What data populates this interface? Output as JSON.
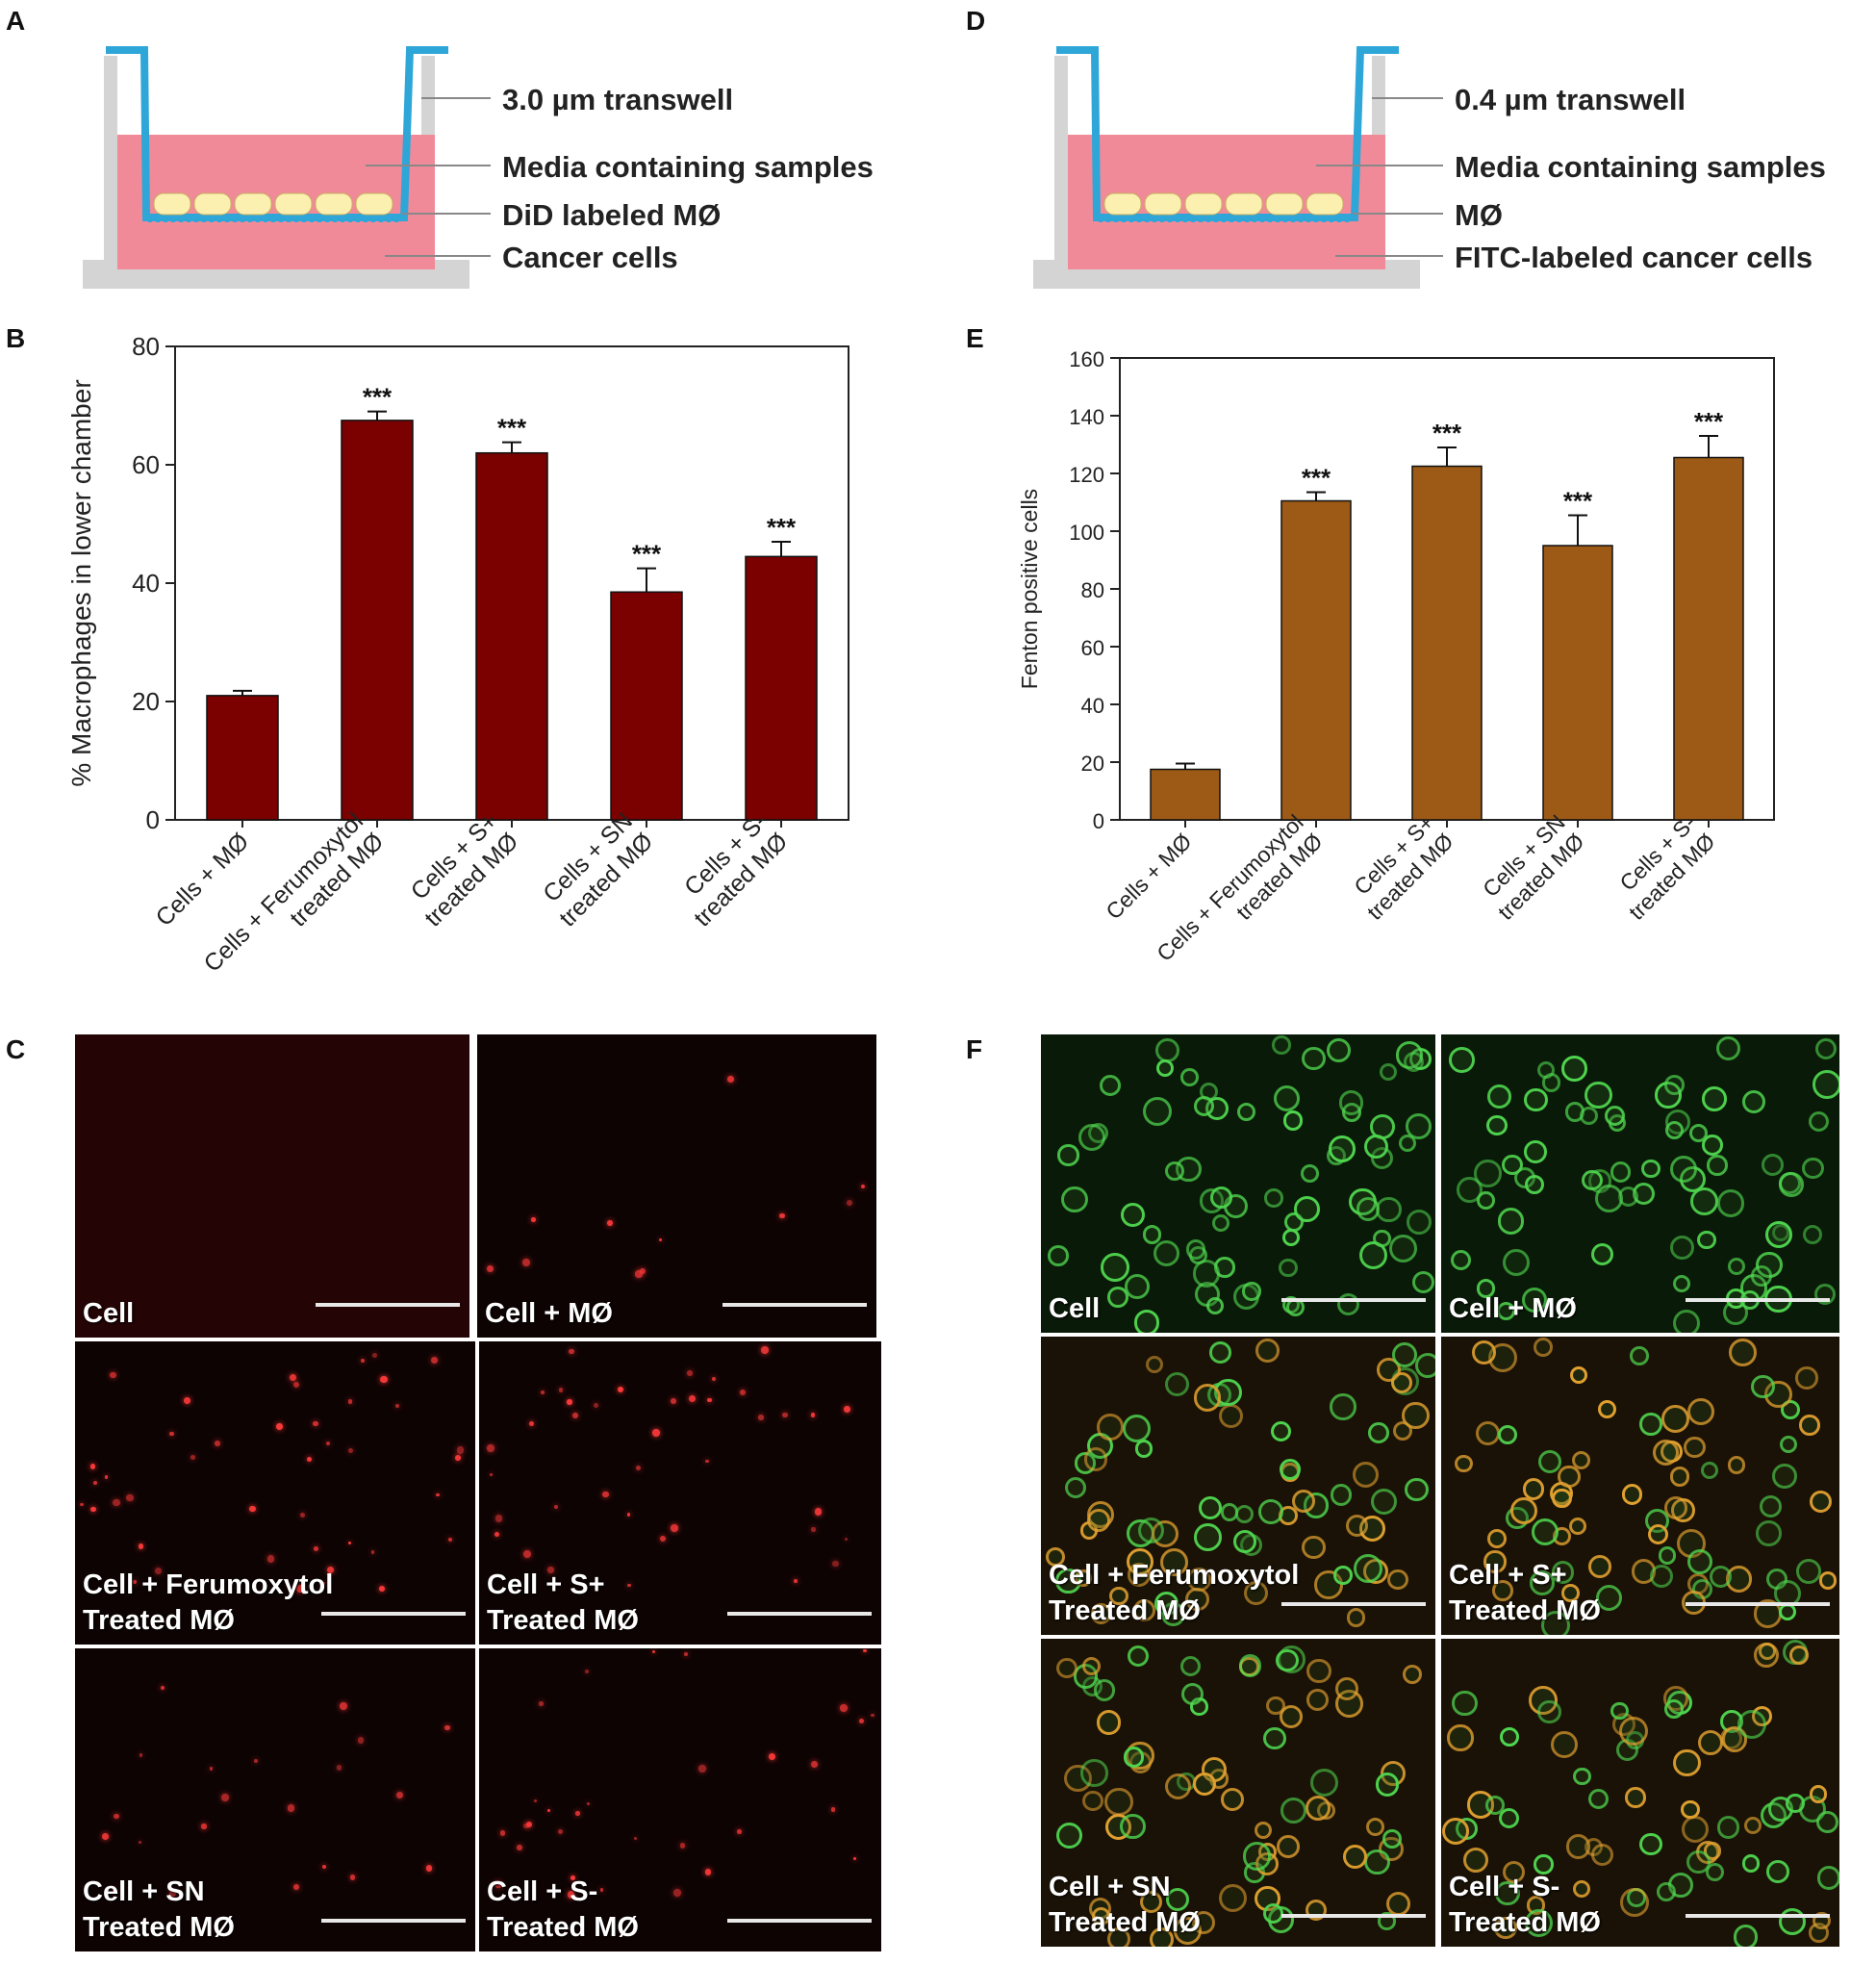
{
  "panels": {
    "A": "A",
    "B": "B",
    "C": "C",
    "D": "D",
    "E": "E",
    "F": "F"
  },
  "schematic_a": {
    "labels": [
      "3.0 µm transwell",
      "Media containing samples",
      "DiD labeled MØ",
      "Cancer cells"
    ]
  },
  "schematic_d": {
    "labels": [
      "0.4 µm transwell",
      "Media containing samples",
      "MØ",
      "FITC-labeled cancer cells"
    ]
  },
  "colors": {
    "media": "#f08a98",
    "transwell": "#2ea6d8",
    "membrane_dots": "#2ea6d8",
    "cells": "#fbf0b0",
    "dish": "#d4d4d4",
    "bar_b": "#7b0000",
    "bar_e": "#9c5a16",
    "red_fluor": "#ff3a3a",
    "green_fluor": "#4fd64f",
    "orange_fluor": "#e0a030"
  },
  "chart_data": [
    {
      "panel": "B",
      "type": "bar",
      "categories": [
        "Cells + MØ",
        "Cells + Ferumoxytol treated MØ",
        "Cells + S+ treated MØ",
        "Cells + SN treated MØ",
        "Cells + S- treated MØ"
      ],
      "category_lines": [
        [
          "Cells + MØ"
        ],
        [
          "Cells + Ferumoxytol",
          "treated MØ"
        ],
        [
          "Cells + S+",
          "treated MØ"
        ],
        [
          "Cells + SN",
          "treated MØ"
        ],
        [
          "Cells + S-",
          "treated MØ"
        ]
      ],
      "values": [
        21,
        67.5,
        62,
        38.5,
        44.5
      ],
      "errors": [
        0.8,
        1.5,
        1.8,
        4.0,
        2.5
      ],
      "significance": [
        "",
        "***",
        "***",
        "***",
        "***"
      ],
      "ylabel": "% Macrophages in lower chamber",
      "xlabel": "",
      "ylim": [
        0,
        80
      ],
      "yticks": [
        "0",
        "20",
        "40",
        "60",
        "80"
      ],
      "grid": false
    },
    {
      "panel": "E",
      "type": "bar",
      "categories": [
        "Cells + MØ",
        "Cells + Ferumoxytol treated MØ",
        "Cells + S+ treated MØ",
        "Cells + SN treated MØ",
        "Cells + S- treated MØ"
      ],
      "category_lines": [
        [
          "Cells + MØ"
        ],
        [
          "Cells + Ferumoxytol",
          "treated MØ"
        ],
        [
          "Cells + S+",
          "treated MØ"
        ],
        [
          "Cells + SN",
          "treated MØ"
        ],
        [
          "Cells + S-",
          "treated MØ"
        ]
      ],
      "values": [
        17.5,
        110.5,
        122.5,
        95,
        125.5
      ],
      "errors": [
        2.0,
        3.0,
        6.5,
        10.5,
        7.5
      ],
      "significance": [
        "",
        "***",
        "***",
        "***",
        "***"
      ],
      "ylabel": "Fenton positive cells",
      "xlabel": "",
      "ylim": [
        0,
        160
      ],
      "yticks": [
        "0",
        "20",
        "40",
        "60",
        "80",
        "100",
        "120",
        "140",
        "160"
      ],
      "grid": false
    }
  ],
  "micrographs_c": [
    {
      "lines": [
        "Cell"
      ],
      "fluor": "red",
      "density": 0
    },
    {
      "lines": [
        "Cell + MØ"
      ],
      "fluor": "red",
      "density": 0.15
    },
    {
      "lines": [
        "Cell + Ferumoxytol",
        "Treated MØ"
      ],
      "fluor": "red",
      "density": 0.6
    },
    {
      "lines": [
        "Cell + S+",
        "Treated MØ"
      ],
      "fluor": "red",
      "density": 0.55
    },
    {
      "lines": [
        "Cell + SN",
        "Treated MØ"
      ],
      "fluor": "red",
      "density": 0.3
    },
    {
      "lines": [
        "Cell + S-",
        "Treated MØ"
      ],
      "fluor": "red",
      "density": 0.45
    }
  ],
  "micrographs_f": [
    {
      "lines": [
        "Cell"
      ],
      "fluor": "green"
    },
    {
      "lines": [
        "Cell + MØ"
      ],
      "fluor": "green"
    },
    {
      "lines": [
        "Cell + Ferumoxytol",
        "Treated MØ"
      ],
      "fluor": "mixed"
    },
    {
      "lines": [
        "Cell + S+",
        "Treated MØ"
      ],
      "fluor": "mixed"
    },
    {
      "lines": [
        "Cell + SN",
        "Treated MØ"
      ],
      "fluor": "mixed"
    },
    {
      "lines": [
        "Cell + S-",
        "Treated MØ"
      ],
      "fluor": "mixed"
    }
  ]
}
